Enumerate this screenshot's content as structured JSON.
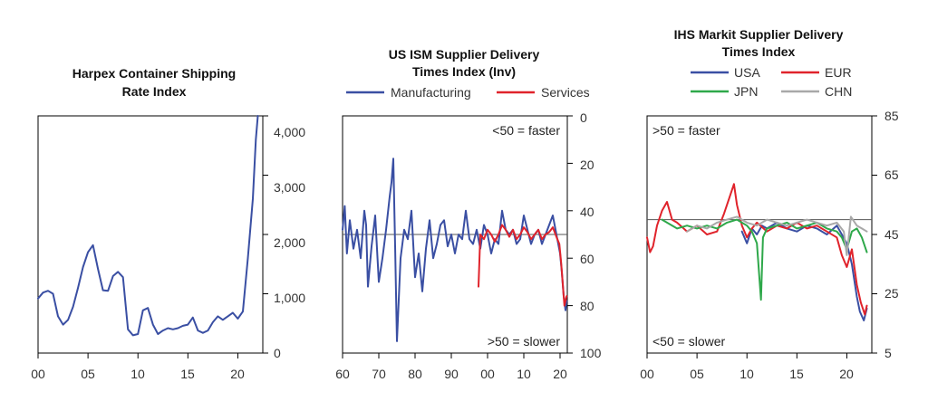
{
  "chart_data": [
    {
      "type": "line",
      "title": "Harpex Container Shipping Rate Index",
      "title_lines": [
        "Harpex Container Shipping",
        "Rate Index"
      ],
      "xlabel": "",
      "ylabel": "",
      "x_ticks": [
        "00",
        "05",
        "10",
        "15",
        "20"
      ],
      "y_ticks": [
        "0",
        "1,000",
        "2,000",
        "3,000",
        "4,000"
      ],
      "xlim": [
        2000,
        2022.5
      ],
      "ylim": [
        0,
        4000
      ],
      "grid": false,
      "series": [
        {
          "color": "#3a4fa3",
          "points": [
            [
              2000.0,
              920
            ],
            [
              2000.5,
              1020
            ],
            [
              2001.0,
              1050
            ],
            [
              2001.5,
              1000
            ],
            [
              2002.0,
              620
            ],
            [
              2002.5,
              480
            ],
            [
              2003.0,
              560
            ],
            [
              2003.5,
              780
            ],
            [
              2004.0,
              1100
            ],
            [
              2004.5,
              1450
            ],
            [
              2005.0,
              1700
            ],
            [
              2005.5,
              1820
            ],
            [
              2006.0,
              1420
            ],
            [
              2006.5,
              1060
            ],
            [
              2007.0,
              1050
            ],
            [
              2007.5,
              1300
            ],
            [
              2008.0,
              1370
            ],
            [
              2008.5,
              1280
            ],
            [
              2009.0,
              400
            ],
            [
              2009.5,
              300
            ],
            [
              2010.0,
              320
            ],
            [
              2010.5,
              720
            ],
            [
              2011.0,
              760
            ],
            [
              2011.5,
              480
            ],
            [
              2012.0,
              320
            ],
            [
              2012.5,
              380
            ],
            [
              2013.0,
              420
            ],
            [
              2013.5,
              400
            ],
            [
              2014.0,
              420
            ],
            [
              2014.5,
              460
            ],
            [
              2015.0,
              480
            ],
            [
              2015.5,
              600
            ],
            [
              2016.0,
              380
            ],
            [
              2016.5,
              340
            ],
            [
              2017.0,
              380
            ],
            [
              2017.5,
              520
            ],
            [
              2018.0,
              620
            ],
            [
              2018.5,
              560
            ],
            [
              2019.0,
              620
            ],
            [
              2019.5,
              680
            ],
            [
              2020.0,
              580
            ],
            [
              2020.5,
              700
            ],
            [
              2021.0,
              1600
            ],
            [
              2021.5,
              2600
            ],
            [
              2021.8,
              3600
            ],
            [
              2022.0,
              4000
            ]
          ]
        }
      ]
    },
    {
      "type": "line",
      "title": "US ISM Supplier Delivery Times Index (Inv)",
      "title_lines": [
        "US ISM Supplier Delivery",
        "Times Index (Inv)"
      ],
      "xlabel": "",
      "ylabel": "",
      "x_ticks": [
        "60",
        "70",
        "80",
        "90",
        "00",
        "10",
        "20"
      ],
      "y_ticks": [
        "0",
        "20",
        "40",
        "60",
        "80",
        "100"
      ],
      "xlim": [
        1960,
        2022
      ],
      "ylim": [
        100,
        0
      ],
      "y_inverted": true,
      "reference_line": 50,
      "grid": false,
      "annotations": [
        "<50 = faster",
        ">50 = slower"
      ],
      "series": [
        {
          "name": "Manufacturing",
          "color": "#3a4fa3",
          "points": [
            [
              1960.0,
              48
            ],
            [
              1960.6,
              38
            ],
            [
              1961.2,
              58
            ],
            [
              1962.0,
              44
            ],
            [
              1963.0,
              56
            ],
            [
              1964.0,
              48
            ],
            [
              1965.0,
              60
            ],
            [
              1966.0,
              40
            ],
            [
              1966.5,
              46
            ],
            [
              1967.0,
              72
            ],
            [
              1968.0,
              55
            ],
            [
              1969.0,
              42
            ],
            [
              1970.0,
              70
            ],
            [
              1971.0,
              60
            ],
            [
              1972.0,
              48
            ],
            [
              1973.0,
              34
            ],
            [
              1973.5,
              28
            ],
            [
              1974.0,
              18
            ],
            [
              1974.5,
              55
            ],
            [
              1975.0,
              95
            ],
            [
              1976.0,
              60
            ],
            [
              1977.0,
              48
            ],
            [
              1978.0,
              52
            ],
            [
              1979.0,
              40
            ],
            [
              1980.0,
              68
            ],
            [
              1981.0,
              58
            ],
            [
              1982.0,
              74
            ],
            [
              1983.0,
              56
            ],
            [
              1984.0,
              44
            ],
            [
              1985.0,
              60
            ],
            [
              1986.0,
              54
            ],
            [
              1987.0,
              46
            ],
            [
              1988.0,
              44
            ],
            [
              1989.0,
              55
            ],
            [
              1990.0,
              50
            ],
            [
              1991.0,
              58
            ],
            [
              1992.0,
              50
            ],
            [
              1993.0,
              52
            ],
            [
              1994.0,
              40
            ],
            [
              1995.0,
              52
            ],
            [
              1996.0,
              54
            ],
            [
              1997.0,
              48
            ],
            [
              1998.0,
              56
            ],
            [
              1999.0,
              46
            ],
            [
              2000.0,
              50
            ],
            [
              2001.0,
              58
            ],
            [
              2002.0,
              52
            ],
            [
              2003.0,
              54
            ],
            [
              2004.0,
              40
            ],
            [
              2005.0,
              48
            ],
            [
              2006.0,
              50
            ],
            [
              2007.0,
              48
            ],
            [
              2008.0,
              54
            ],
            [
              2009.0,
              52
            ],
            [
              2010.0,
              42
            ],
            [
              2011.0,
              48
            ],
            [
              2012.0,
              54
            ],
            [
              2013.0,
              50
            ],
            [
              2014.0,
              48
            ],
            [
              2015.0,
              54
            ],
            [
              2016.0,
              50
            ],
            [
              2017.0,
              46
            ],
            [
              2018.0,
              42
            ],
            [
              2019.0,
              50
            ],
            [
              2020.0,
              58
            ],
            [
              2020.5,
              66
            ],
            [
              2021.0,
              76
            ],
            [
              2021.5,
              82
            ],
            [
              2021.8,
              78
            ]
          ]
        },
        {
          "name": "Services",
          "color": "#e0232b",
          "points": [
            [
              1997.5,
              72
            ],
            [
              1998.0,
              50
            ],
            [
              1999.0,
              52
            ],
            [
              2000.0,
              48
            ],
            [
              2001.0,
              50
            ],
            [
              2002.0,
              53
            ],
            [
              2003.0,
              50
            ],
            [
              2004.0,
              46
            ],
            [
              2005.0,
              48
            ],
            [
              2006.0,
              51
            ],
            [
              2007.0,
              48
            ],
            [
              2008.0,
              52
            ],
            [
              2009.0,
              50
            ],
            [
              2010.0,
              47
            ],
            [
              2011.0,
              49
            ],
            [
              2012.0,
              52
            ],
            [
              2013.0,
              50
            ],
            [
              2014.0,
              48
            ],
            [
              2015.0,
              52
            ],
            [
              2016.0,
              50
            ],
            [
              2017.0,
              49
            ],
            [
              2018.0,
              47
            ],
            [
              2019.0,
              51
            ],
            [
              2019.8,
              54
            ],
            [
              2020.3,
              62
            ],
            [
              2020.8,
              72
            ],
            [
              2021.2,
              80
            ],
            [
              2021.8,
              76
            ]
          ]
        }
      ]
    },
    {
      "type": "line",
      "title": "IHS Markit Supplier Delivery Times Index",
      "title_lines": [
        "IHS Markit Supplier Delivery",
        "Times Index"
      ],
      "xlabel": "",
      "ylabel": "",
      "x_ticks": [
        "00",
        "05",
        "10",
        "15",
        "20"
      ],
      "y_ticks": [
        "5",
        "25",
        "45",
        "65",
        "85"
      ],
      "xlim": [
        2000,
        2022.5
      ],
      "ylim": [
        5,
        85
      ],
      "reference_line": 50,
      "grid": false,
      "annotations": [
        ">50 = faster",
        "<50 = slower"
      ],
      "series": [
        {
          "name": "USA",
          "color": "#3a4fa3",
          "points": [
            [
              2009.5,
              46
            ],
            [
              2010.0,
              42
            ],
            [
              2010.5,
              47
            ],
            [
              2011.0,
              45
            ],
            [
              2011.5,
              48
            ],
            [
              2012.0,
              47
            ],
            [
              2013.0,
              49
            ],
            [
              2014.0,
              47
            ],
            [
              2015.0,
              46
            ],
            [
              2016.0,
              48
            ],
            [
              2017.0,
              47
            ],
            [
              2018.0,
              45
            ],
            [
              2019.0,
              48
            ],
            [
              2020.0,
              42
            ],
            [
              2020.5,
              35
            ],
            [
              2021.0,
              24
            ],
            [
              2021.3,
              19
            ],
            [
              2021.7,
              16
            ],
            [
              2022.0,
              20
            ]
          ]
        },
        {
          "name": "EUR",
          "color": "#e0232b",
          "points": [
            [
              2000.0,
              44
            ],
            [
              2000.3,
              39
            ],
            [
              2000.6,
              41
            ],
            [
              2001.0,
              48
            ],
            [
              2001.5,
              53
            ],
            [
              2002.0,
              56
            ],
            [
              2002.5,
              50
            ],
            [
              2003.0,
              49
            ],
            [
              2004.0,
              46
            ],
            [
              2005.0,
              48
            ],
            [
              2006.0,
              45
            ],
            [
              2007.0,
              46
            ],
            [
              2007.7,
              52
            ],
            [
              2008.3,
              58
            ],
            [
              2008.7,
              62
            ],
            [
              2009.0,
              55
            ],
            [
              2009.5,
              48
            ],
            [
              2010.0,
              44
            ],
            [
              2010.5,
              47
            ],
            [
              2011.0,
              49
            ],
            [
              2012.0,
              46
            ],
            [
              2013.0,
              48
            ],
            [
              2014.0,
              47
            ],
            [
              2015.0,
              49
            ],
            [
              2016.0,
              47
            ],
            [
              2017.0,
              48
            ],
            [
              2018.0,
              46
            ],
            [
              2019.0,
              44
            ],
            [
              2019.5,
              38
            ],
            [
              2020.0,
              34
            ],
            [
              2020.5,
              40
            ],
            [
              2021.0,
              28
            ],
            [
              2021.4,
              22
            ],
            [
              2021.8,
              18
            ],
            [
              2022.0,
              21
            ]
          ]
        },
        {
          "name": "JPN",
          "color": "#2ea84a",
          "points": [
            [
              2001.5,
              50
            ],
            [
              2002.0,
              49
            ],
            [
              2003.0,
              47
            ],
            [
              2004.0,
              48
            ],
            [
              2005.0,
              47
            ],
            [
              2006.0,
              48
            ],
            [
              2007.0,
              47
            ],
            [
              2008.0,
              49
            ],
            [
              2009.0,
              50
            ],
            [
              2010.0,
              48
            ],
            [
              2010.5,
              46
            ],
            [
              2011.0,
              42
            ],
            [
              2011.4,
              23
            ],
            [
              2011.6,
              44
            ],
            [
              2012.0,
              47
            ],
            [
              2013.0,
              48
            ],
            [
              2014.0,
              49
            ],
            [
              2015.0,
              47
            ],
            [
              2016.0,
              48
            ],
            [
              2017.0,
              49
            ],
            [
              2018.0,
              47
            ],
            [
              2019.0,
              46
            ],
            [
              2019.5,
              44
            ],
            [
              2020.0,
              40
            ],
            [
              2020.5,
              46
            ],
            [
              2021.0,
              47
            ],
            [
              2021.5,
              44
            ],
            [
              2022.0,
              39
            ]
          ]
        },
        {
          "name": "CHN",
          "color": "#a8a8a8",
          "points": [
            [
              2004.0,
              46
            ],
            [
              2005.0,
              48
            ],
            [
              2006.0,
              47
            ],
            [
              2007.0,
              49
            ],
            [
              2008.0,
              50
            ],
            [
              2009.0,
              51
            ],
            [
              2010.0,
              49
            ],
            [
              2011.0,
              48
            ],
            [
              2012.0,
              50
            ],
            [
              2013.0,
              49
            ],
            [
              2014.0,
              48
            ],
            [
              2015.0,
              49
            ],
            [
              2016.0,
              50
            ],
            [
              2017.0,
              49
            ],
            [
              2018.0,
              48
            ],
            [
              2019.0,
              49
            ],
            [
              2019.7,
              46
            ],
            [
              2020.0,
              38
            ],
            [
              2020.4,
              51
            ],
            [
              2021.0,
              48
            ],
            [
              2021.5,
              47
            ],
            [
              2022.0,
              46
            ]
          ]
        }
      ]
    }
  ]
}
